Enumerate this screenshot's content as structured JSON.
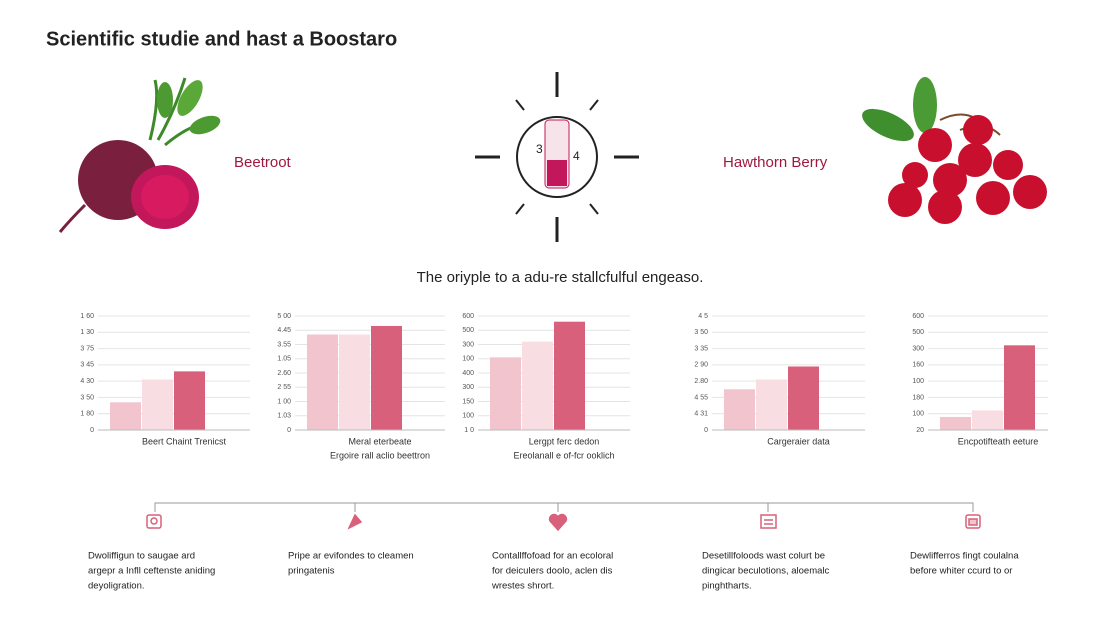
{
  "header": {
    "title": "Scientific studie and hast a Boostaro"
  },
  "ingredients": [
    "Beetroot",
    "Hawthorn Berry"
  ],
  "center_icon": [
    "3",
    "4"
  ],
  "subtitle": "The oriyple to a adu-re stallcfulful engeaso.",
  "chart_data": [
    {
      "type": "bar",
      "categories": [
        null,
        null,
        null
      ],
      "values": [
        1.7,
        3.1,
        3.6
      ],
      "colors": [
        "#f2c4ce",
        "#f8dde2",
        "#d9607a"
      ],
      "ylim": [
        0,
        7
      ],
      "yticks": [
        0,
        {
          "value": 1,
          "label": "1 80"
        },
        {
          "value": 2,
          "label": "3 50"
        },
        {
          "value": 3,
          "label": "4 30"
        },
        {
          "value": 4,
          "label": "3 45"
        },
        {
          "value": 5,
          "label": "3 75"
        },
        {
          "value": 6,
          "label": "1 30"
        },
        {
          "value": 7,
          "label": "1 60"
        }
      ],
      "caption": [
        "Beert Chaint Trenicst"
      ],
      "grid": true
    },
    {
      "type": "bar",
      "categories": [
        null,
        null,
        null
      ],
      "values": [
        6.7,
        6.7,
        7.3
      ],
      "colors": [
        "#f2c4ce",
        "#f8dde2",
        "#d9607a"
      ],
      "ylim": [
        0,
        8
      ],
      "yticks": [
        0,
        {
          "value": 1,
          "label": "1.03"
        },
        {
          "value": 2,
          "label": "1 00"
        },
        {
          "value": 3,
          "label": "2 55"
        },
        {
          "value": 4,
          "label": "2.60"
        },
        {
          "value": 5,
          "label": "1.05"
        },
        {
          "value": 6,
          "label": "3.55"
        },
        {
          "value": 7,
          "label": "4.45"
        },
        {
          "value": 8,
          "label": "5 00"
        }
      ],
      "caption": [
        "Meral eterbeate",
        "Ergoire rall aclio beettron"
      ],
      "grid": true
    },
    {
      "type": "bar",
      "categories": [
        null,
        null,
        null
      ],
      "values": [
        5.1,
        6.2,
        7.6
      ],
      "colors": [
        "#f2c4ce",
        "#f8dde2",
        "#d9607a"
      ],
      "ylim": [
        0,
        8
      ],
      "yticks": [
        {
          "value": 0,
          "label": "1 0"
        },
        {
          "value": 1,
          "label": "100"
        },
        {
          "value": 2,
          "label": "150"
        },
        {
          "value": 3,
          "label": "300"
        },
        {
          "value": 4,
          "label": "400"
        },
        {
          "value": 5,
          "label": "100"
        },
        {
          "value": 6,
          "label": "300"
        },
        {
          "value": 7,
          "label": "500"
        },
        {
          "value": 8,
          "label": "600"
        }
      ],
      "caption": [
        "Lergpt ferc dedon",
        "Ereolanall e of-fcr ooklich"
      ],
      "grid": true
    },
    {
      "type": "bar",
      "categories": [
        null,
        null,
        null
      ],
      "values": [
        2.5,
        3.1,
        3.9
      ],
      "colors": [
        "#f2c4ce",
        "#f8dde2",
        "#d9607a"
      ],
      "ylim": [
        0,
        7
      ],
      "yticks": [
        0,
        {
          "value": 1,
          "label": "4 31"
        },
        {
          "value": 2,
          "label": "4 55"
        },
        {
          "value": 3,
          "label": "2.80"
        },
        {
          "value": 4,
          "label": "2 90"
        },
        {
          "value": 5,
          "label": "3 35"
        },
        {
          "value": 6,
          "label": "3 50"
        },
        {
          "value": 7,
          "label": "4 5"
        }
      ],
      "caption": [
        "Cargeraier data"
      ],
      "grid": true
    },
    {
      "type": "bar",
      "categories": [
        null,
        null,
        null
      ],
      "values": [
        0.8,
        1.2,
        5.2
      ],
      "colors": [
        "#f2c4ce",
        "#f8dde2",
        "#d9607a"
      ],
      "ylim": [
        0,
        7
      ],
      "yticks": [
        {
          "value": 0,
          "label": "20"
        },
        {
          "value": 1,
          "label": "100"
        },
        {
          "value": 2,
          "label": "180"
        },
        {
          "value": 3,
          "label": "100"
        },
        {
          "value": 4,
          "label": "160"
        },
        {
          "value": 5,
          "label": "300"
        },
        {
          "value": 6,
          "label": "500"
        },
        {
          "value": 7,
          "label": "600"
        }
      ],
      "caption": [
        "Encpotifteath eeture"
      ],
      "grid": true
    }
  ],
  "features": [
    [
      "Dwoliffigun to saugae ard",
      "argepr a Infll ceftenste aniding",
      "deyoligration."
    ],
    [
      "Pripe ar evifondes to cleamen",
      "pringatenis"
    ],
    [
      "Contallffofoad for an ecoloral",
      "for deiculers doolo, aclen dis",
      "wrestes shrort."
    ],
    [
      "Desetillfoloods wast colurt be",
      "dingicar beculotions, aloemalc",
      "pinghtharts."
    ],
    [
      "Dewlifferros fingt coulalna",
      "before whiter ccurd to or"
    ]
  ]
}
